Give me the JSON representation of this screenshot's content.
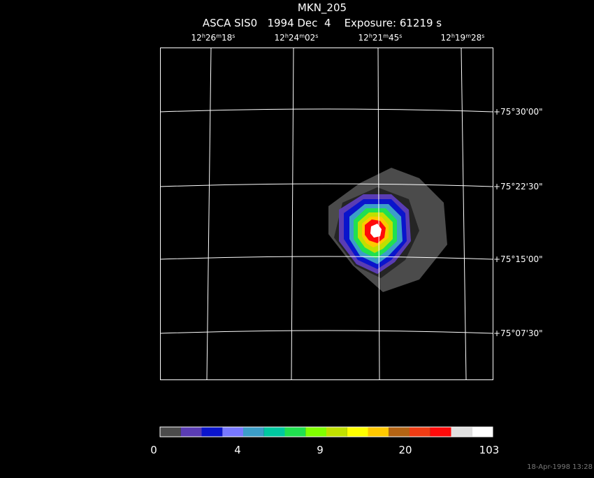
{
  "header": {
    "title": "MKN_205",
    "subtitle": "ASCA SIS0   1994 Dec  4    Exposure: 61219 s"
  },
  "ra_labels": [
    [
      "12",
      "h",
      "26",
      "m",
      "18",
      "s"
    ],
    [
      "12",
      "h",
      "24",
      "m",
      "02",
      "s"
    ],
    [
      "12",
      "h",
      "21",
      "m",
      "45",
      "s"
    ],
    [
      "12",
      "h",
      "19",
      "m",
      "28",
      "s"
    ]
  ],
  "dec_labels": [
    "+75°30'00\"",
    "+75°22'30\"",
    "+75°15'00\"",
    "+75°07'30\""
  ],
  "colorbar": {
    "colors": [
      "#4b4b4b",
      "#5a3cb4",
      "#0a14cc",
      "#7878ff",
      "#3c9ec8",
      "#00c8a0",
      "#20e050",
      "#80ff00",
      "#c0e000",
      "#ffff00",
      "#ffc800",
      "#b46414",
      "#f03c14",
      "#ff0a0a",
      "#e0e0e0",
      "#ffffff"
    ],
    "labels": [
      "0",
      "4",
      "9",
      "20",
      "103"
    ]
  },
  "timestamp": "18-Apr-1998 13:28"
}
